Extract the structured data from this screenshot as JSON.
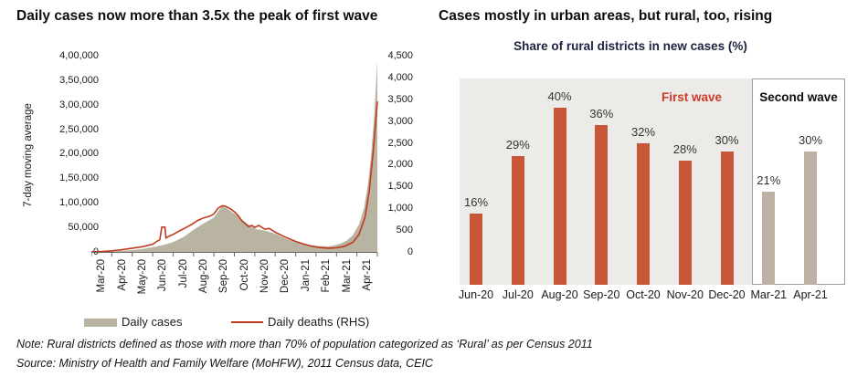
{
  "notes": {
    "note": "Note: Rural districts defined as those with more than 70% of population categorized as ‘Rural’ as per Census 2011",
    "source": "Source: Ministry of Health and Family Welfare (MoHFW), 2011 Census data, CEIC"
  },
  "chart_data": [
    {
      "type": "area",
      "title": "Daily cases now more than 3.5x the peak of first wave",
      "ylabel": "7-day moving average",
      "lhs_axis": {
        "max": 400000,
        "ticks": [
          "0",
          "50,000",
          "1,00,000",
          "1,50,000",
          "2,00,000",
          "2,50,000",
          "3,00,000",
          "3,50,000",
          "4,00,000"
        ]
      },
      "rhs_axis": {
        "max": 4500,
        "ticks": [
          "0",
          "500",
          "1,000",
          "1,500",
          "2,000",
          "2,500",
          "3,000",
          "3,500",
          "4,000",
          "4,500"
        ]
      },
      "x_labels": [
        "Mar-20",
        "Apr-20",
        "May-20",
        "Jun-20",
        "Jul-20",
        "Aug-20",
        "Sep-20",
        "Oct-20",
        "Nov-20",
        "Dec-20",
        "Jan-21",
        "Feb-21",
        "Mar-21",
        "Apr-21"
      ],
      "grid": false,
      "legend_position": "bottom",
      "series": [
        {
          "name": "Daily cases",
          "type": "area",
          "axis": "lhs",
          "color": "#b9b4a2",
          "points": [
            [
              0,
              100
            ],
            [
              0.5,
              300
            ],
            [
              1,
              1200
            ],
            [
              1.5,
              2200
            ],
            [
              2,
              3800
            ],
            [
              2.5,
              6000
            ],
            [
              3,
              9500
            ],
            [
              3.5,
              14000
            ],
            [
              4,
              20000
            ],
            [
              4.5,
              30000
            ],
            [
              5,
              45000
            ],
            [
              5.5,
              58000
            ],
            [
              6,
              70000
            ],
            [
              6.2,
              82000
            ],
            [
              6.4,
              93000
            ],
            [
              6.6,
              90000
            ],
            [
              6.8,
              84000
            ],
            [
              7,
              78000
            ],
            [
              7.3,
              68000
            ],
            [
              7.6,
              58000
            ],
            [
              7.9,
              50000
            ],
            [
              8.1,
              46000
            ],
            [
              8.3,
              45000
            ],
            [
              8.5,
              43000
            ],
            [
              8.8,
              40000
            ],
            [
              9,
              37000
            ],
            [
              9.3,
              31000
            ],
            [
              9.6,
              26000
            ],
            [
              10,
              20000
            ],
            [
              10.4,
              16500
            ],
            [
              10.8,
              13000
            ],
            [
              11.2,
              11500
            ],
            [
              11.6,
              11200
            ],
            [
              11.9,
              13500
            ],
            [
              12.2,
              17000
            ],
            [
              12.5,
              23000
            ],
            [
              12.8,
              34000
            ],
            [
              13.1,
              56000
            ],
            [
              13.35,
              90000
            ],
            [
              13.55,
              140000
            ],
            [
              13.7,
              200000
            ],
            [
              13.85,
              280000
            ],
            [
              14,
              390000
            ]
          ]
        },
        {
          "name": "Daily deaths (RHS)",
          "type": "line",
          "axis": "rhs",
          "color": "#c03a20",
          "points": [
            [
              0,
              2
            ],
            [
              0.5,
              8
            ],
            [
              1,
              25
            ],
            [
              1.5,
              50
            ],
            [
              2,
              85
            ],
            [
              2.5,
              120
            ],
            [
              3,
              175
            ],
            [
              3.2,
              240
            ],
            [
              3.35,
              280
            ],
            [
              3.45,
              570
            ],
            [
              3.6,
              570
            ],
            [
              3.65,
              320
            ],
            [
              3.8,
              360
            ],
            [
              4,
              400
            ],
            [
              4.3,
              480
            ],
            [
              4.6,
              550
            ],
            [
              4.9,
              630
            ],
            [
              5.2,
              720
            ],
            [
              5.5,
              780
            ],
            [
              5.8,
              820
            ],
            [
              6,
              870
            ],
            [
              6.2,
              1000
            ],
            [
              6.4,
              1060
            ],
            [
              6.55,
              1050
            ],
            [
              6.8,
              990
            ],
            [
              7,
              920
            ],
            [
              7.2,
              820
            ],
            [
              7.4,
              700
            ],
            [
              7.55,
              640
            ],
            [
              7.7,
              580
            ],
            [
              7.85,
              610
            ],
            [
              8,
              560
            ],
            [
              8.2,
              610
            ],
            [
              8.35,
              560
            ],
            [
              8.5,
              520
            ],
            [
              8.7,
              540
            ],
            [
              8.9,
              480
            ],
            [
              9.1,
              430
            ],
            [
              9.4,
              360
            ],
            [
              9.7,
              300
            ],
            [
              10,
              240
            ],
            [
              10.4,
              180
            ],
            [
              10.8,
              130
            ],
            [
              11.2,
              100
            ],
            [
              11.6,
              85
            ],
            [
              12,
              95
            ],
            [
              12.4,
              130
            ],
            [
              12.8,
              220
            ],
            [
              13.1,
              400
            ],
            [
              13.4,
              800
            ],
            [
              13.6,
              1400
            ],
            [
              13.8,
              2300
            ],
            [
              14,
              3450
            ]
          ]
        }
      ]
    },
    {
      "type": "bar",
      "title": "Cases mostly in urban areas, but rural, too, rising",
      "subtitle": "Share of rural districts in new cases (%)",
      "categories": [
        "Jun-20",
        "Jul-20",
        "Aug-20",
        "Sep-20",
        "Oct-20",
        "Nov-20",
        "Dec-20",
        "Mar-21",
        "Apr-21"
      ],
      "values": [
        16,
        29,
        40,
        36,
        32,
        28,
        30,
        21,
        30
      ],
      "value_labels": [
        "16%",
        "29%",
        "40%",
        "36%",
        "32%",
        "28%",
        "30%",
        "21%",
        "30%"
      ],
      "groups": [
        "first",
        "first",
        "first",
        "first",
        "first",
        "first",
        "first",
        "second",
        "second"
      ],
      "annotations": {
        "first_wave": "First wave",
        "second_wave": "Second wave"
      },
      "colors": {
        "first_wave_bar": "#c8573a",
        "second_wave_bar": "#bcb1a3",
        "first_wave_panel_bg": "#ecebe7",
        "second_wave_panel_border": "#9e9e9e",
        "first_wave_label": "#cf3a2a",
        "second_wave_label": "#0d0d0d"
      },
      "ylim": [
        0,
        47
      ],
      "grid": false
    }
  ]
}
